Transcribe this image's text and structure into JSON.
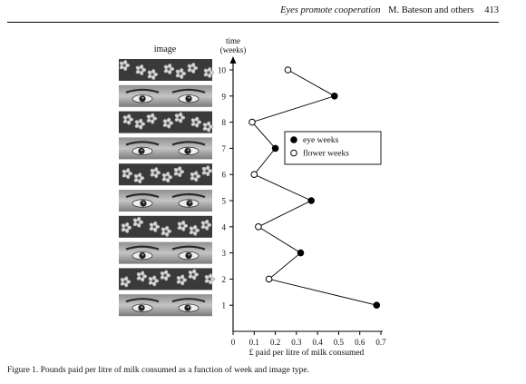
{
  "header": {
    "journal": "Eyes promote cooperation",
    "authors": "M. Bateson and others",
    "page_number": "413"
  },
  "figure": {
    "image_column_label": "image",
    "caption": "Figure 1. Pounds paid per litre of milk consumed as a function of week and image type.",
    "image_strips": [
      {
        "week": 10,
        "kind": "flowers"
      },
      {
        "week": 9,
        "kind": "eyes"
      },
      {
        "week": 8,
        "kind": "flowers"
      },
      {
        "week": 7,
        "kind": "eyes"
      },
      {
        "week": 6,
        "kind": "flowers"
      },
      {
        "week": 5,
        "kind": "eyes"
      },
      {
        "week": 4,
        "kind": "flowers"
      },
      {
        "week": 3,
        "kind": "eyes"
      },
      {
        "week": 2,
        "kind": "flowers"
      },
      {
        "week": 1,
        "kind": "eyes"
      }
    ]
  },
  "chart_data": {
    "type": "line",
    "y_axis_title_line1": "time",
    "y_axis_title_line2": "(weeks)",
    "xlabel": "£ paid per litre of milk consumed",
    "xlim": [
      0,
      0.7
    ],
    "ylim": [
      1,
      10
    ],
    "x_ticks": [
      "0",
      "0.1",
      "0.2",
      "0.3",
      "0.4",
      "0.5",
      "0.6",
      "0.7"
    ],
    "y_ticks": [
      "1",
      "2",
      "3",
      "4",
      "5",
      "6",
      "7",
      "8",
      "9",
      "10"
    ],
    "points": [
      {
        "week": 1,
        "paid": 0.68,
        "type": "eye"
      },
      {
        "week": 2,
        "paid": 0.17,
        "type": "flower"
      },
      {
        "week": 3,
        "paid": 0.32,
        "type": "eye"
      },
      {
        "week": 4,
        "paid": 0.12,
        "type": "flower"
      },
      {
        "week": 5,
        "paid": 0.37,
        "type": "eye"
      },
      {
        "week": 6,
        "paid": 0.1,
        "type": "flower"
      },
      {
        "week": 7,
        "paid": 0.2,
        "type": "eye"
      },
      {
        "week": 8,
        "paid": 0.09,
        "type": "flower"
      },
      {
        "week": 9,
        "paid": 0.48,
        "type": "eye"
      },
      {
        "week": 10,
        "paid": 0.26,
        "type": "flower"
      }
    ],
    "legend": {
      "placement": "center-right",
      "items": [
        {
          "label": "eye weeks",
          "marker": "filled-circle"
        },
        {
          "label": "flower weeks",
          "marker": "open-circle"
        }
      ]
    },
    "grid": false
  }
}
